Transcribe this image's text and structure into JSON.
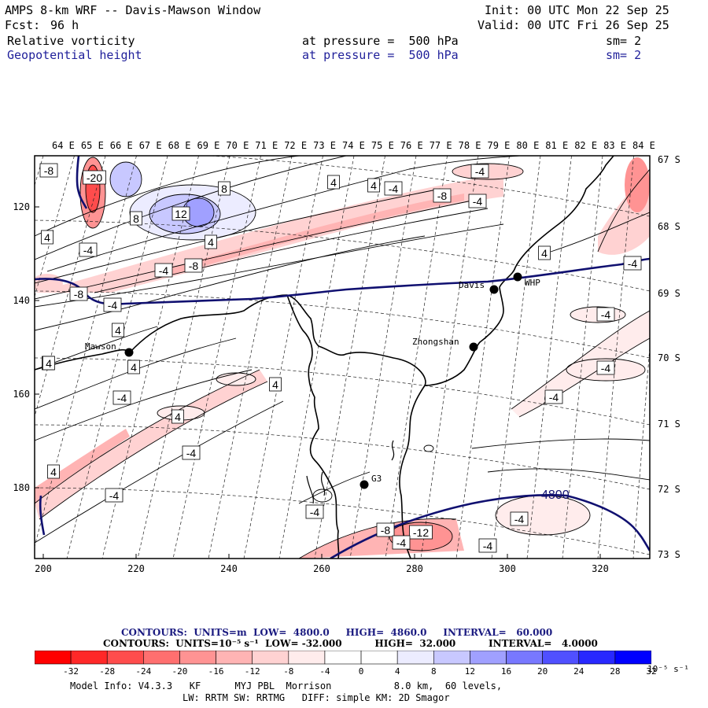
{
  "header": {
    "title": "AMPS 8-km WRF -- Davis-Mawson Window",
    "init": "Init: 00 UTC Mon 22 Sep 25",
    "fcst_label": "Fcst:",
    "fcst_value": "96 h",
    "valid": "Valid: 00 UTC Fri 26 Sep 25",
    "field1_name": "Relative vorticity",
    "field1_level": "at pressure =  500 hPa",
    "field1_sm": "sm= 2",
    "field2_name": "Geopotential height",
    "field2_level": "at pressure =  500 hPa",
    "field2_sm": "sm= 2"
  },
  "map": {
    "top_lon_labels": [
      "64 E",
      "65 E",
      "66 E",
      "67 E",
      "68 E",
      "69 E",
      "70 E",
      "71 E",
      "72 E",
      "73 E",
      "74 E",
      "75 E",
      "76 E",
      "77 E",
      "78 E",
      "79 E",
      "80 E",
      "81 E",
      "82 E",
      "83 E",
      "84 E"
    ],
    "right_lat_labels": [
      "67 S",
      "68 S",
      "69 S",
      "70 S",
      "71 S",
      "72 S",
      "73 S"
    ],
    "x_ticks": [
      "200",
      "220",
      "240",
      "260",
      "280",
      "300",
      "320"
    ],
    "y_ticks": [
      "120",
      "140",
      "160",
      "180"
    ],
    "stations": [
      {
        "name": "Mawson"
      },
      {
        "name": "Davis"
      },
      {
        "name": "WHP"
      },
      {
        "name": "Zhongshan"
      },
      {
        "name": "G3"
      }
    ],
    "height_contour_label": "4800",
    "vort_labels": [
      "-8",
      "-20",
      "8",
      "12",
      "8",
      "4",
      "4",
      "4",
      "-4",
      "-8",
      "-4",
      "4",
      "-4",
      "4",
      "-8",
      "-4",
      "-8",
      "-4",
      "4",
      "4",
      "4",
      "-4",
      "-4",
      "4",
      "-4",
      "-4",
      "4",
      "-4",
      "4",
      "-4",
      "-4",
      "-4",
      "-4",
      "-4",
      "-8",
      "-12",
      "-4",
      "-4",
      "4"
    ]
  },
  "footer": {
    "contours1": "CONTOURS:  UNITS=m  LOW=  4800.0     HIGH=  4860.0     INTERVAL=   60.000",
    "contours2": "CONTOURS:  UNITS=10⁻⁵ s⁻¹  LOW= -32.000          HIGH=  32.000          INTERVAL=   4.0000",
    "model_info": "Model Info: V4.3.3   KF      MYJ PBL  Morrison           8.0 km,  60 levels,",
    "model_info2": "LW: RRTM SW: RRTMG   DIFF: simple KM: 2D Smagor"
  },
  "colorbar": {
    "labels": [
      "-32",
      "-28",
      "-24",
      "-20",
      "-16",
      "-12",
      "-8",
      "-4",
      "0",
      "4",
      "8",
      "12",
      "16",
      "20",
      "24",
      "28",
      "32"
    ],
    "units": "10⁻⁵ s⁻¹",
    "colors": [
      "#ff0000",
      "#ff2828",
      "#ff4c4c",
      "#ff6f6f",
      "#ff9393",
      "#ffb4b4",
      "#ffd2d2",
      "#ffecec",
      "#ffffff",
      "#ffffff",
      "#ececff",
      "#c8c8ff",
      "#a0a0ff",
      "#7878ff",
      "#5050ff",
      "#2828ff",
      "#0000ff"
    ]
  }
}
